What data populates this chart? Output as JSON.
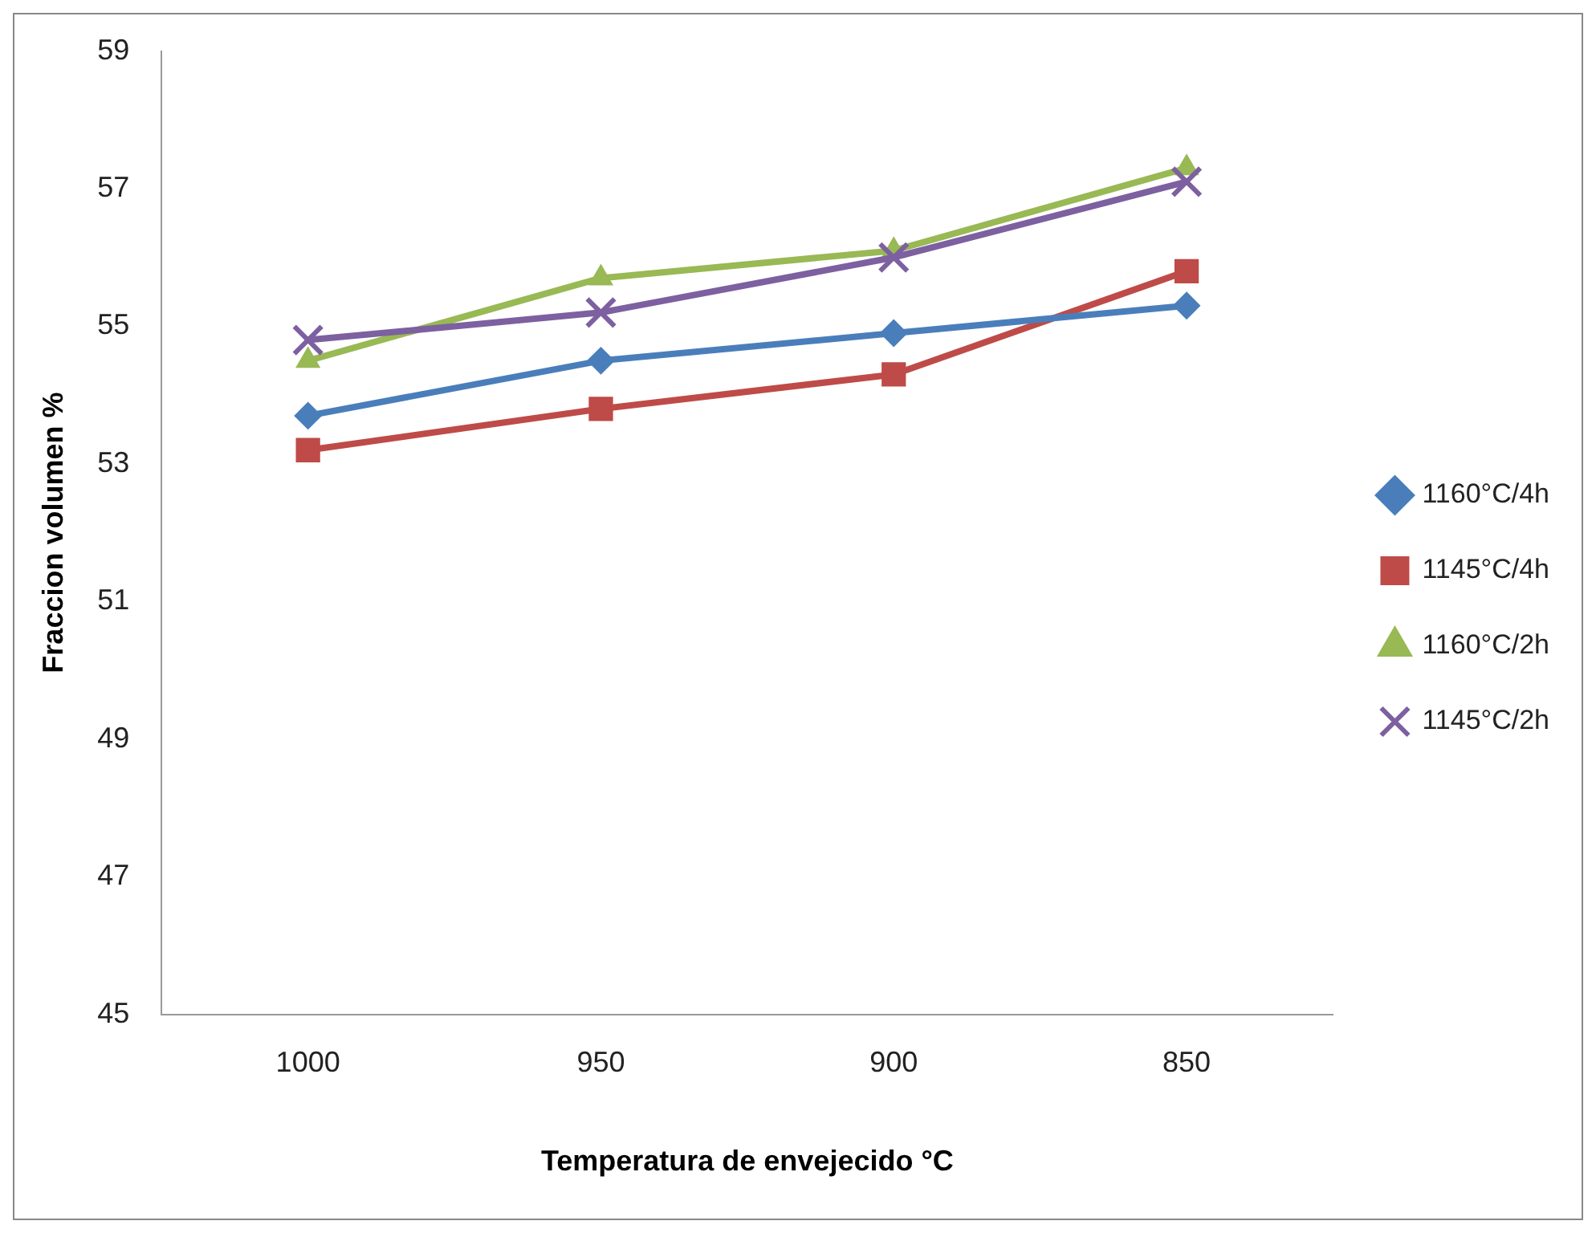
{
  "chart_data": {
    "type": "line",
    "xlabel": "Temperatura de envejecido °C",
    "ylabel": "Fraccion volumen %",
    "categories": [
      "1000",
      "950",
      "900",
      "850"
    ],
    "series": [
      {
        "name": "1160°C/4h",
        "color": "#4a7ebb",
        "marker": "diamond",
        "values": [
          53.7,
          54.5,
          54.9,
          55.3
        ]
      },
      {
        "name": "1145°C/4h",
        "color": "#be4b48",
        "marker": "square",
        "values": [
          53.2,
          53.8,
          54.3,
          55.8
        ]
      },
      {
        "name": "1160°C/2h",
        "color": "#98b954",
        "marker": "triangle",
        "values": [
          54.5,
          55.7,
          56.1,
          57.3
        ]
      },
      {
        "name": "1145°C/2h",
        "color": "#7d60a0",
        "marker": "cross",
        "values": [
          54.8,
          55.2,
          56.0,
          57.1
        ]
      }
    ],
    "ylim": [
      45,
      59
    ],
    "yticks": [
      45,
      47,
      49,
      51,
      53,
      55,
      57,
      59
    ],
    "grid": false,
    "legend": "right",
    "line_style": "solid"
  }
}
